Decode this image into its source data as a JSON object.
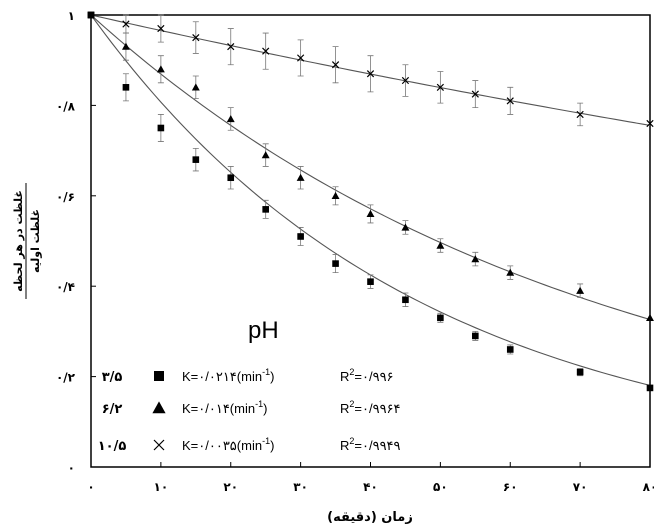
{
  "chart_data": {
    "type": "scatter",
    "title": "",
    "xlabel": "زمان (دقیقه)",
    "ylabel_numerator": "غلظت در هر لحظه",
    "ylabel_denominator": "غلظت اولیه",
    "annotation": "pH",
    "xlim": [
      0,
      80
    ],
    "ylim": [
      0,
      1
    ],
    "x_ticks": [
      {
        "value": 0,
        "label": "۰"
      },
      {
        "value": 10,
        "label": "۱۰"
      },
      {
        "value": 20,
        "label": "۲۰"
      },
      {
        "value": 30,
        "label": "۳۰"
      },
      {
        "value": 40,
        "label": "۴۰"
      },
      {
        "value": 50,
        "label": "۵۰"
      },
      {
        "value": 60,
        "label": "۶۰"
      },
      {
        "value": 70,
        "label": "۷۰"
      },
      {
        "value": 80,
        "label": "۸۰"
      }
    ],
    "y_ticks": [
      {
        "value": 0,
        "label": "۰"
      },
      {
        "value": 0.2,
        "label": "۰/۲"
      },
      {
        "value": 0.4,
        "label": "۰/۴"
      },
      {
        "value": 0.6,
        "label": "۰/۶"
      },
      {
        "value": 0.8,
        "label": "۰/۸"
      },
      {
        "value": 1,
        "label": "۱"
      }
    ],
    "grid": false,
    "legend_placement": "bottom-left",
    "series": [
      {
        "name": "۳/۵",
        "marker": "square",
        "k_label": "K=۰/۰۲۱۴(min",
        "k_unit_sup": "-1",
        "r2_label": "=۰/۹۹۶",
        "k": 0.0214,
        "x": [
          5,
          10,
          15,
          20,
          25,
          30,
          35,
          40,
          45,
          50,
          55,
          60,
          70,
          80
        ],
        "y": [
          0.84,
          0.75,
          0.68,
          0.64,
          0.57,
          0.51,
          0.45,
          0.41,
          0.37,
          0.33,
          0.29,
          0.26,
          0.21,
          0.175
        ],
        "err": [
          0.03,
          0.03,
          0.025,
          0.025,
          0.02,
          0.02,
          0.02,
          0.015,
          0.015,
          0.01,
          0.01,
          0.01,
          0.008,
          0.0
        ]
      },
      {
        "name": "۶/۲",
        "marker": "triangle",
        "k_label": "K=۰/۰۱۴(min",
        "k_unit_sup": "-1",
        "r2_label": "=۰/۹۹۶۴",
        "k": 0.014,
        "x": [
          5,
          10,
          15,
          20,
          25,
          30,
          35,
          40,
          45,
          50,
          55,
          60,
          70,
          80
        ],
        "y": [
          0.93,
          0.88,
          0.84,
          0.77,
          0.69,
          0.64,
          0.6,
          0.56,
          0.53,
          0.49,
          0.46,
          0.43,
          0.39,
          0.33
        ],
        "err": [
          0.03,
          0.03,
          0.025,
          0.025,
          0.025,
          0.025,
          0.02,
          0.02,
          0.015,
          0.015,
          0.015,
          0.015,
          0.015,
          0.0
        ]
      },
      {
        "name": "۱۰/۵",
        "marker": "x",
        "k_label": "K=۰/۰۰۳۵(min",
        "k_unit_sup": "-1",
        "r2_label": "=۰/۹۹۴۹",
        "k": 0.0035,
        "x": [
          5,
          10,
          15,
          20,
          25,
          30,
          35,
          40,
          45,
          50,
          55,
          60,
          70,
          80
        ],
        "y": [
          0.98,
          0.97,
          0.95,
          0.93,
          0.92,
          0.905,
          0.89,
          0.87,
          0.855,
          0.84,
          0.825,
          0.81,
          0.78,
          0.76
        ],
        "err": [
          0.02,
          0.03,
          0.035,
          0.04,
          0.04,
          0.04,
          0.04,
          0.04,
          0.035,
          0.035,
          0.03,
          0.03,
          0.025,
          0.0
        ]
      }
    ]
  }
}
